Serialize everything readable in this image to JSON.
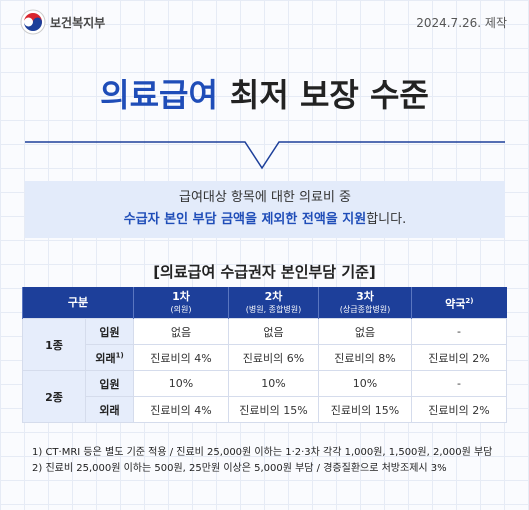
{
  "header": {
    "ministry": "보건복지부",
    "date": "2024.7.26. 제작"
  },
  "title": {
    "highlight": "의료급여",
    "rest": "최저 보장 수준"
  },
  "intro": {
    "line1": "급여대상 항목에 대한 의료비 중",
    "line2_highlight": "수급자 본인 부담 금액을 제외한 전액을 지원",
    "line2_rest": "합니다."
  },
  "table": {
    "caption": "[의료급여 수급권자 본인부담 기준]",
    "header": {
      "category": "구분",
      "columns": [
        {
          "name": "1차",
          "sub": "(의원)"
        },
        {
          "name": "2차",
          "sub": "(병원, 종합병원)"
        },
        {
          "name": "3차",
          "sub": "(상급종합병원)"
        },
        {
          "name": "약국",
          "note": "2)"
        }
      ]
    },
    "groups": [
      {
        "name": "1종",
        "rows": [
          {
            "label": "입원",
            "cells": [
              "없음",
              "없음",
              "없음",
              "-"
            ]
          },
          {
            "label": "외래",
            "note": "1)",
            "cells": [
              "진료비의 4%",
              "진료비의 6%",
              "진료비의 8%",
              "진료비의 2%"
            ]
          }
        ]
      },
      {
        "name": "2종",
        "rows": [
          {
            "label": "입원",
            "cells": [
              "10%",
              "10%",
              "10%",
              "-"
            ]
          },
          {
            "label": "외래",
            "cells": [
              "진료비의 4%",
              "진료비의 15%",
              "진료비의 15%",
              "진료비의 2%"
            ]
          }
        ]
      }
    ]
  },
  "footnotes": [
    "1) CT·MRI 등은 별도 기준 적용 / 진료비 25,000원 이하는 1·2·3차 각각 1,000원, 1,500원, 2,000원 부담",
    "2) 진료비 25,000원 이하는 500원, 25만원 이상은 5,000원 부담 / 경증질환으로 처방조제시 3%"
  ]
}
